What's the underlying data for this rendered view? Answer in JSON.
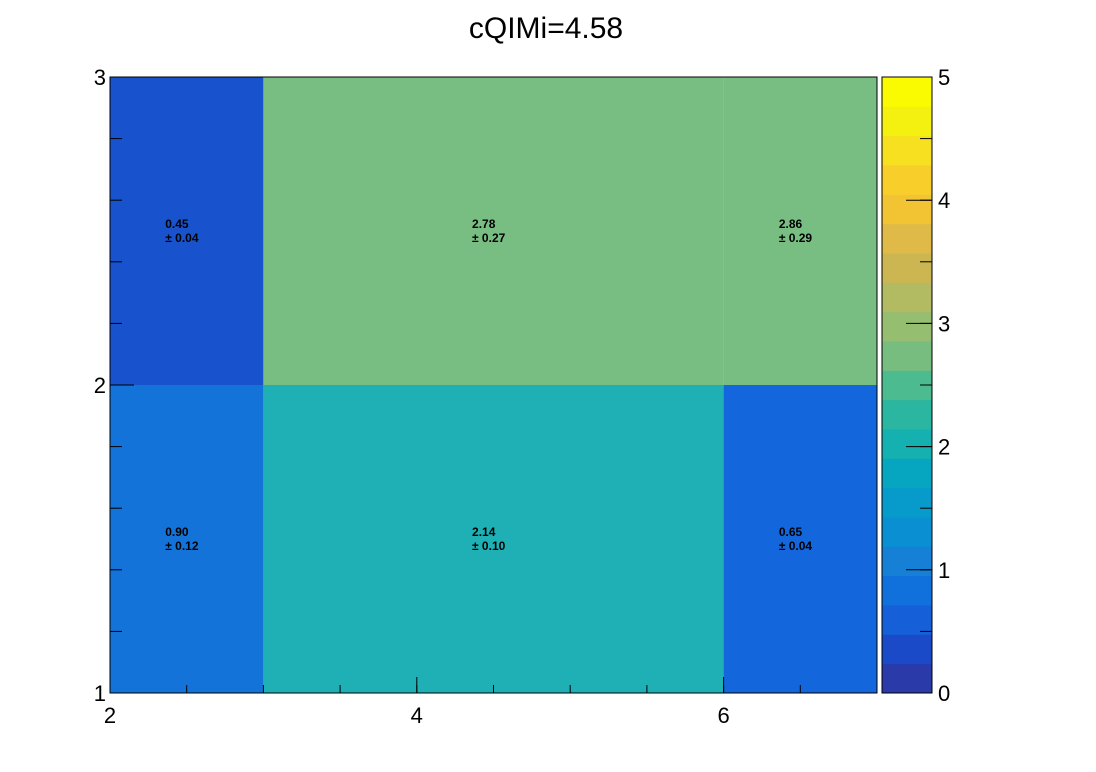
{
  "chart_data": {
    "type": "heatmap",
    "title": "cQIMi=4.58",
    "xlabel": "",
    "ylabel": "",
    "xlim": [
      2,
      7
    ],
    "ylim": [
      1,
      3
    ],
    "x_ticks": [
      2,
      4,
      6
    ],
    "y_ticks": [
      1,
      2,
      3
    ],
    "colorbar": {
      "range": [
        0,
        5
      ],
      "ticks": [
        0,
        1,
        2,
        3,
        4,
        5
      ],
      "palette": [
        "#2a3aa8",
        "#1a4ac8",
        "#155fd8",
        "#1070dc",
        "#1580d6",
        "#0a90d2",
        "#069bcb",
        "#06a6c0",
        "#15b0b0",
        "#2ab6a0",
        "#4dbb90",
        "#77bd80",
        "#96be70",
        "#b2bb62",
        "#ccb652",
        "#e0ba48",
        "#f2c434",
        "#f8ce2a",
        "#f6e020",
        "#f4f010",
        "#fafa00"
      ]
    },
    "cells": [
      {
        "x0": 2,
        "x1": 3,
        "y0": 1,
        "y1": 2,
        "value": "0.90",
        "error": "± 0.12",
        "color": "#1473d9"
      },
      {
        "x0": 3,
        "x1": 6,
        "y0": 1,
        "y1": 2,
        "value": "2.14",
        "error": "± 0.10",
        "color": "#1eb0b4"
      },
      {
        "x0": 6,
        "x1": 7,
        "y0": 1,
        "y1": 2,
        "value": "0.65",
        "error": "± 0.04",
        "color": "#1466dd"
      },
      {
        "x0": 2,
        "x1": 3,
        "y0": 2,
        "y1": 3,
        "value": "0.45",
        "error": "± 0.04",
        "color": "#1852cc"
      },
      {
        "x0": 3,
        "x1": 6,
        "y0": 2,
        "y1": 3,
        "value": "2.78",
        "error": "± 0.27",
        "color": "#78bd82"
      },
      {
        "x0": 6,
        "x1": 7,
        "y0": 2,
        "y1": 3,
        "value": "2.86",
        "error": "± 0.29",
        "color": "#78bd82"
      }
    ]
  }
}
